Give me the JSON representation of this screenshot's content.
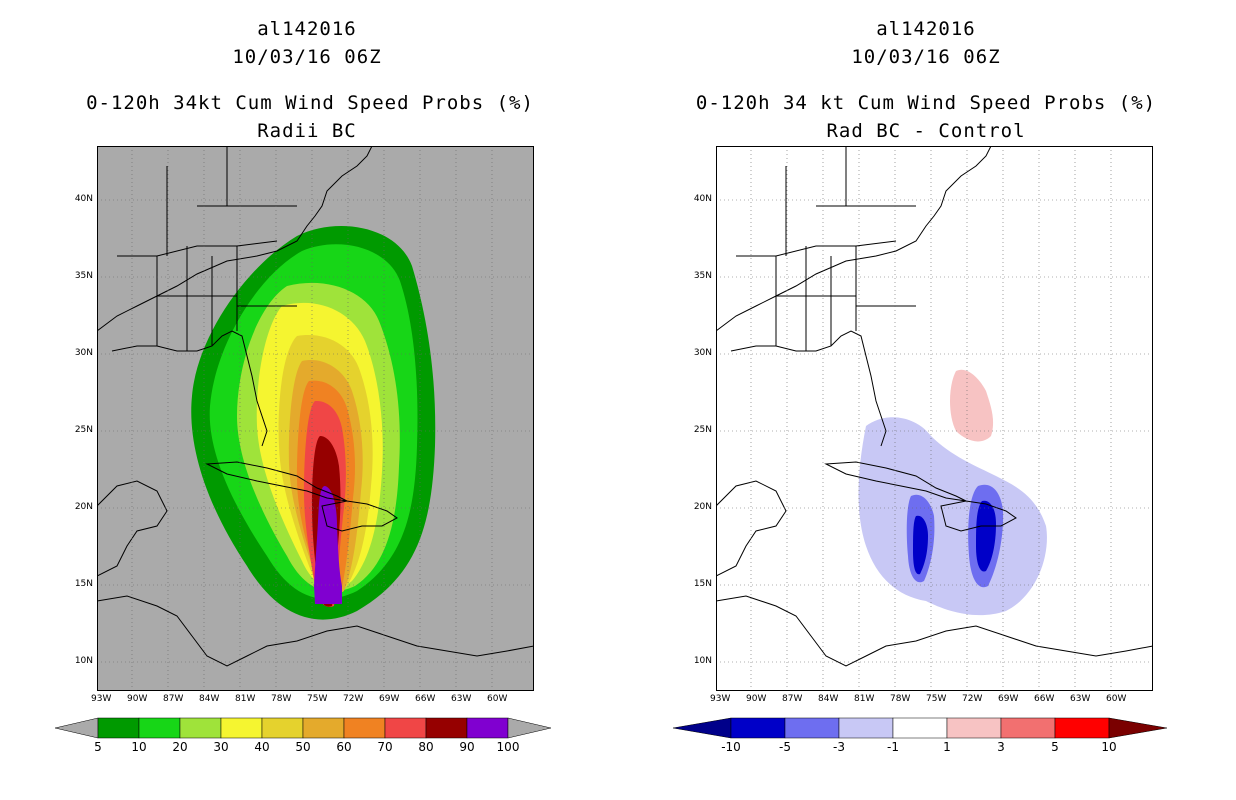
{
  "left_panel": {
    "storm_id": "al142016",
    "datetime": "10/03/16 06Z",
    "title": "0-120h 34kt Cum Wind Speed Probs (%)",
    "subtitle": "Radii BC",
    "colorbar": {
      "labels": [
        "5",
        "10",
        "20",
        "30",
        "40",
        "50",
        "60",
        "70",
        "80",
        "90",
        "100"
      ],
      "colors": [
        "#009a00",
        "#17d617",
        "#9fe33a",
        "#f5f530",
        "#e5d22d",
        "#e4aa2c",
        "#f08222",
        "#f04646",
        "#960000",
        "#8000d0"
      ],
      "extend_color": "#aaaaaa"
    }
  },
  "right_panel": {
    "storm_id": "al142016",
    "datetime": "10/03/16 06Z",
    "title": "0-120h 34 kt Cum Wind Speed Probs (%)",
    "subtitle": "Rad BC - Control",
    "colorbar": {
      "labels": [
        "-10",
        "-5",
        "-3",
        "-1",
        "1",
        "3",
        "5",
        "10"
      ],
      "colors": [
        "#0000c8",
        "#6e6ef0",
        "#c8c8f5",
        "#ffffff",
        "#f7c3c3",
        "#f27070",
        "#ff0000"
      ],
      "low_extend": "#00008a",
      "high_extend": "#7a0000"
    }
  },
  "axes": {
    "lon_labels": [
      "93W",
      "90W",
      "87W",
      "84W",
      "81W",
      "78W",
      "75W",
      "72W",
      "69W",
      "66W",
      "63W",
      "60W"
    ],
    "lat_labels": [
      "10N",
      "15N",
      "20N",
      "25N",
      "30N",
      "35N",
      "40N"
    ]
  },
  "colors": {
    "land_bg": "#aaaaaa",
    "grid": "#999999"
  }
}
